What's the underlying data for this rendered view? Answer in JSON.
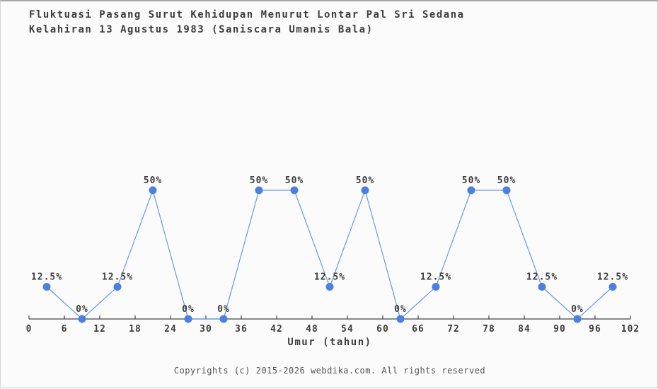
{
  "header": {
    "title_line1": "Fluktuasi Pasang Surut Kehidupan Menurut Lontar Pal Sri Sedana",
    "title_line2": "Kelahiran 13 Agustus 1983 (Saniscara Umanis Bala)"
  },
  "chart_data": {
    "type": "line",
    "title": "Fluktuasi Pasang Surut Kehidupan Menurut Lontar Pal Sri Sedana",
    "subtitle": "Kelahiran 13 Agustus 1983 (Saniscara Umanis Bala)",
    "xlabel": "Umur (tahun)",
    "ylabel": "",
    "x": [
      3,
      9,
      15,
      21,
      27,
      33,
      39,
      45,
      51,
      57,
      63,
      69,
      75,
      81,
      87,
      93,
      99
    ],
    "values": [
      12.5,
      0,
      12.5,
      50,
      0,
      0,
      50,
      50,
      12.5,
      50,
      0,
      12.5,
      50,
      50,
      12.5,
      0,
      12.5
    ],
    "point_labels": [
      "12.5%",
      "0%",
      "12.5%",
      "50%",
      "0%",
      "0%",
      "50%",
      "50%",
      "12.5%",
      "50%",
      "0%",
      "12.5%",
      "50%",
      "50%",
      "12.5%",
      "0%",
      "12.5%"
    ],
    "x_ticks": [
      0,
      6,
      12,
      18,
      24,
      30,
      36,
      42,
      48,
      54,
      60,
      66,
      72,
      78,
      84,
      90,
      96,
      102
    ],
    "xlim": [
      0,
      102
    ],
    "ylim": [
      0,
      100
    ],
    "grid": false,
    "legend": "none"
  },
  "colors": {
    "line": "#6b9ae6",
    "marker": "#4a80e0",
    "axis": "#454545",
    "point_label": "#3d3d3d",
    "tick_label": "#3d3d3d"
  },
  "footer": {
    "copyright": "Copyrights (c) 2015-2026 webdika.com. All rights reserved"
  }
}
